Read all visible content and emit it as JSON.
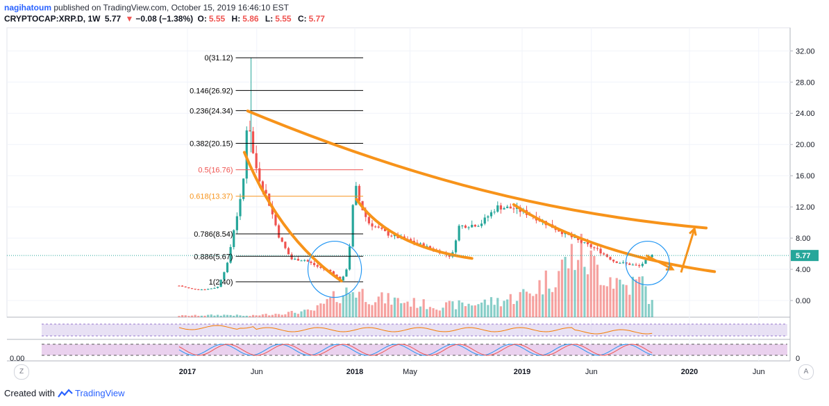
{
  "header": {
    "user": "nagihatoum",
    "published": "published on TradingView.com, October 15, 2019 16:46:10 EST",
    "symbol": "CRYPTOCAP:XRP.D, 1W",
    "last": "5.77",
    "change_icon": "down-triangle-icon",
    "change": "−0.08 (−1.38%)",
    "open_label": "O:",
    "open": "5.55",
    "high_label": "H:",
    "high": "5.86",
    "low_label": "L:",
    "low": "5.55",
    "close_label": "C:",
    "close": "5.77"
  },
  "footer": {
    "created_with": "Created with",
    "brand": "TradingView",
    "logo_icon": "tradingview-logo-icon"
  },
  "corner": {
    "z": "Z",
    "a": "A"
  },
  "colors": {
    "up": "#26a69a",
    "down": "#ef5350",
    "trend": "#f7931a",
    "fib_black": "#000000",
    "fib_red": "#ef5350",
    "fib_orange": "#f7931a",
    "circle": "#2196f3",
    "rsi_band": "#d1c4e9",
    "last_price_bg": "#26a69a"
  },
  "chart_data": {
    "type": "candlestick",
    "x_ticks": [
      {
        "label": "2017",
        "t": 2017.0
      },
      {
        "label": "Jun",
        "t": 2017.414
      },
      {
        "label": "2018",
        "t": 2018.0
      },
      {
        "label": "May",
        "t": 2018.33
      },
      {
        "label": "2019",
        "t": 2019.0
      },
      {
        "label": "Jun",
        "t": 2019.414
      },
      {
        "label": "2020",
        "t": 2020.0
      },
      {
        "label": "Jun",
        "t": 2020.414
      }
    ],
    "y_ticks": [
      "32.00",
      "28.00",
      "24.00",
      "20.00",
      "16.00",
      "12.00",
      "8.00",
      "4.00",
      "0.00"
    ],
    "y_tick_values": [
      32,
      28,
      24,
      20,
      16,
      12,
      8,
      4,
      0
    ],
    "ylim": [
      -2.4,
      33.8
    ],
    "last_price_label": "5.77",
    "last_price": 5.77,
    "anchors": [
      [
        2016.95,
        1.9
      ],
      [
        2017.02,
        1.5
      ],
      [
        2017.1,
        1.4
      ],
      [
        2017.18,
        1.7
      ],
      [
        2017.24,
        4.8
      ],
      [
        2017.28,
        9.5
      ],
      [
        2017.33,
        14.0
      ],
      [
        2017.36,
        24.3
      ],
      [
        2017.39,
        19.0
      ],
      [
        2017.42,
        16.2
      ],
      [
        2017.48,
        13.0
      ],
      [
        2017.55,
        8.0
      ],
      [
        2017.62,
        5.3
      ],
      [
        2017.7,
        5.2
      ],
      [
        2017.78,
        4.3
      ],
      [
        2017.86,
        3.7
      ],
      [
        2017.92,
        2.4
      ],
      [
        2017.96,
        4.6
      ],
      [
        2018.0,
        15.0
      ],
      [
        2018.03,
        12.5
      ],
      [
        2018.08,
        10.0
      ],
      [
        2018.2,
        8.5
      ],
      [
        2018.35,
        7.5
      ],
      [
        2018.5,
        6.3
      ],
      [
        2018.58,
        5.6
      ],
      [
        2018.62,
        9.5
      ],
      [
        2018.75,
        9.8
      ],
      [
        2018.85,
        12.0
      ],
      [
        2018.95,
        11.8
      ],
      [
        2019.05,
        11.0
      ],
      [
        2019.2,
        9.2
      ],
      [
        2019.35,
        7.5
      ],
      [
        2019.45,
        6.5
      ],
      [
        2019.55,
        5.0
      ],
      [
        2019.7,
        4.4
      ],
      [
        2019.78,
        5.8
      ]
    ],
    "volume_profile": [
      [
        2017.0,
        0.2
      ],
      [
        2017.25,
        0.3
      ],
      [
        2017.36,
        0.15
      ],
      [
        2017.5,
        0.4
      ],
      [
        2017.75,
        0.8
      ],
      [
        2017.92,
        3.0
      ],
      [
        2018.0,
        3.5
      ],
      [
        2018.1,
        2.5
      ],
      [
        2018.3,
        2.0
      ],
      [
        2018.5,
        1.4
      ],
      [
        2018.7,
        1.7
      ],
      [
        2018.9,
        2.2
      ],
      [
        2019.05,
        3.2
      ],
      [
        2019.2,
        5.5
      ],
      [
        2019.33,
        8.5
      ],
      [
        2019.4,
        7.0
      ],
      [
        2019.5,
        5.5
      ],
      [
        2019.62,
        4.0
      ],
      [
        2019.72,
        4.5
      ],
      [
        2019.78,
        1.5
      ]
    ],
    "fib_levels": [
      {
        "label": "0(31.12)",
        "value": 31.12,
        "color": "#000000"
      },
      {
        "label": "0.146(26.92)",
        "value": 26.92,
        "color": "#000000"
      },
      {
        "label": "0.236(24.34)",
        "value": 24.34,
        "color": "#000000"
      },
      {
        "label": "0.382(20.15)",
        "value": 20.15,
        "color": "#000000"
      },
      {
        "label": "0.5(16.76)",
        "value": 16.76,
        "color": "#ef5350"
      },
      {
        "label": "0.618(13.37)",
        "value": 13.37,
        "color": "#f7931a"
      },
      {
        "label": "0.786(8.54)",
        "value": 8.54,
        "color": "#000000"
      },
      {
        "label": "0.886(5.67)",
        "value": 5.67,
        "color": "#000000"
      },
      {
        "label": "1(2.40)",
        "value": 2.4,
        "color": "#000000"
      }
    ],
    "fib_range": [
      2017.33,
      2018.05
    ],
    "trend_curves": [
      [
        [
          2017.36,
          24.3
        ],
        [
          2018.35,
          15.5
        ],
        [
          2019.2,
          11.0
        ],
        [
          2020.1,
          9.3
        ]
      ],
      [
        [
          2017.34,
          19.0
        ],
        [
          2017.55,
          8.0
        ],
        [
          2017.92,
          2.5
        ]
      ],
      [
        [
          2018.01,
          13.0
        ],
        [
          2018.2,
          7.0
        ],
        [
          2018.7,
          5.4
        ]
      ],
      [
        [
          2018.95,
          12.3
        ],
        [
          2019.4,
          6.0
        ],
        [
          2020.15,
          3.7
        ]
      ]
    ],
    "arrows": [
      [
        [
          2019.74,
          5.8
        ],
        [
          2019.9,
          4.0
        ]
      ],
      [
        [
          2019.95,
          3.6
        ],
        [
          2020.03,
          9.2
        ]
      ]
    ],
    "circles": [
      {
        "t": 2017.88,
        "v": 4.0,
        "rx": 0.16,
        "ry": 3.6
      },
      {
        "t": 2019.75,
        "v": 4.8,
        "rx": 0.13,
        "ry": 2.8
      }
    ],
    "rsi_panel": {
      "band": [
        30,
        70
      ]
    },
    "stoch_panel": {
      "label": "0.00",
      "right_label": "0"
    }
  }
}
